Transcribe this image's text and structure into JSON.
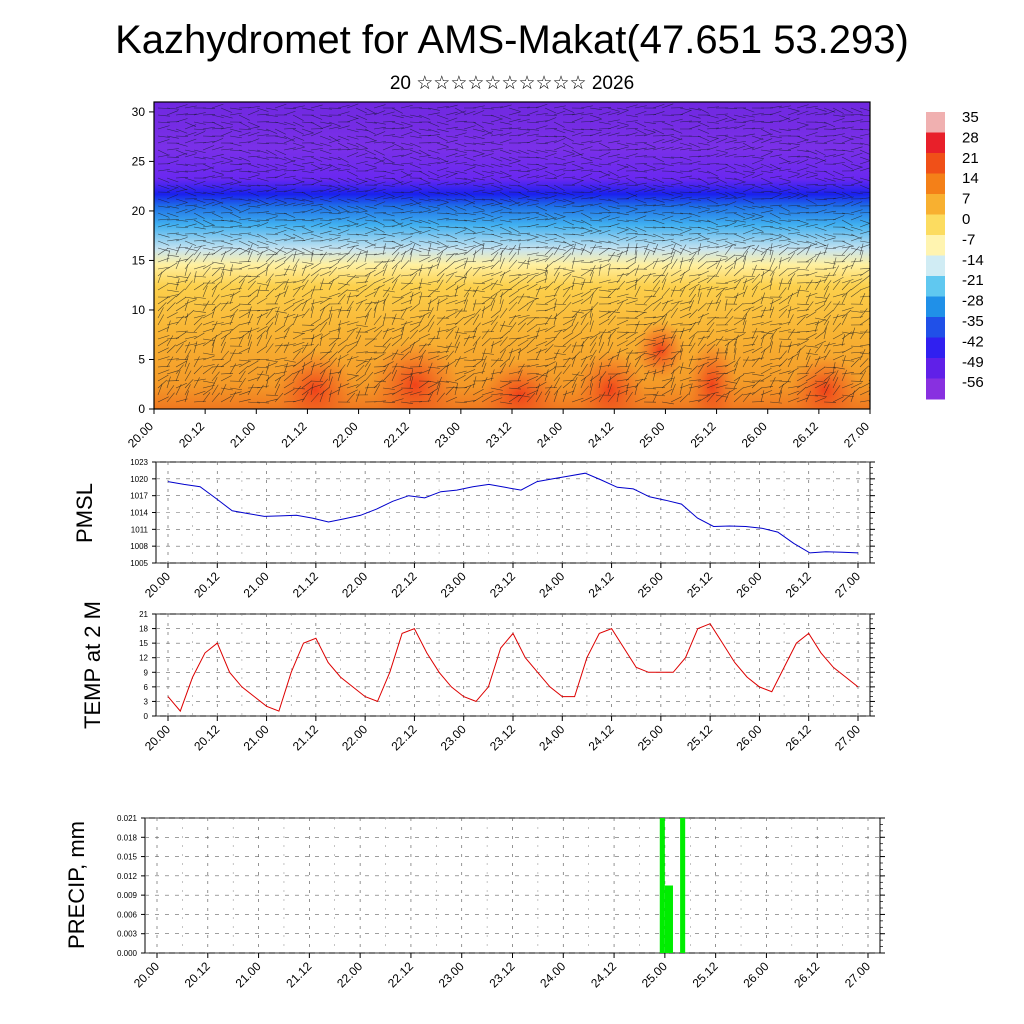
{
  "title": "Kazhydromet for AMS-Makat(47.651 53.293)",
  "subtitle": "20 ☆☆☆☆☆☆☆☆☆☆ 2026",
  "time_labels": [
    "20.00",
    "20.12",
    "21.00",
    "21.12",
    "22.00",
    "22.12",
    "23.00",
    "23.12",
    "24.00",
    "24.12",
    "25.00",
    "25.12",
    "26.00",
    "26.12",
    "27.00"
  ],
  "chart_data": [
    {
      "type": "heatmap",
      "name": "vertical temperature cross-section with wind",
      "ylim": [
        0,
        31
      ],
      "yticks": [
        "0",
        "5",
        "10",
        "15",
        "20",
        "25",
        "30"
      ],
      "colorbar_labels": [
        "35",
        "28",
        "21",
        "14",
        "7",
        "0",
        "-7",
        "-14",
        "-21",
        "-28",
        "-35",
        "-42",
        "-49",
        "-56"
      ],
      "colorbar_colors": [
        "#f0b0b0",
        "#e8202a",
        "#f05018",
        "#f48018",
        "#f8b030",
        "#fcdc60",
        "#fff4b0",
        "#d0ecf4",
        "#60c8f0",
        "#2090e8",
        "#2050e8",
        "#3020f0",
        "#6020e8",
        "#8830e0"
      ]
    },
    {
      "type": "line",
      "ylabel": "PMSL",
      "ylim": [
        1005,
        1023
      ],
      "yticks": [
        "1005",
        "1008",
        "1011",
        "1014",
        "1017",
        "1020",
        "1023"
      ],
      "color": "#0000cc",
      "values": [
        1019.5,
        1019.0,
        1018.6,
        1016.5,
        1014.3,
        1013.8,
        1013.3,
        1013.4,
        1013.5,
        1013.0,
        1012.3,
        1012.9,
        1013.5,
        1014.6,
        1016.0,
        1017.0,
        1016.6,
        1017.7,
        1018.0,
        1018.6,
        1019.0,
        1018.5,
        1018.0,
        1019.5,
        1020.0,
        1020.5,
        1021.0,
        1019.8,
        1018.5,
        1018.2,
        1016.8,
        1016.2,
        1015.5,
        1013.0,
        1011.5,
        1011.6,
        1011.5,
        1011.2,
        1010.5,
        1008.5,
        1006.8,
        1007.0,
        1006.9,
        1006.8
      ]
    },
    {
      "type": "line",
      "ylabel": "TEMP at 2 M",
      "ylim": [
        0,
        21
      ],
      "yticks": [
        "0",
        "3",
        "6",
        "9",
        "12",
        "15",
        "18",
        "21"
      ],
      "color": "#dd0000",
      "values": [
        4,
        1,
        8,
        13,
        15,
        9,
        6,
        4,
        2,
        1,
        9,
        15,
        16,
        11,
        8,
        6,
        4,
        3,
        9,
        17,
        18,
        13,
        9,
        6,
        4,
        3,
        6,
        14,
        17,
        12,
        9,
        6,
        4,
        4,
        12,
        17,
        18,
        14,
        10,
        9,
        9,
        9,
        12,
        18,
        19,
        15,
        11,
        8,
        6,
        5,
        10,
        15,
        17,
        13,
        10,
        8,
        6
      ]
    },
    {
      "type": "bar",
      "ylabel": "PRECIP, mm",
      "ylim": [
        0,
        0.021
      ],
      "yticks": [
        "0.000",
        "0.003",
        "0.006",
        "0.009",
        "0.012",
        "0.015",
        "0.018",
        "0.021"
      ],
      "color": "#00ee00",
      "bars": [
        {
          "start": 24.95,
          "end": 25.0,
          "value": 0.021
        },
        {
          "start": 25.0,
          "end": 25.08,
          "value": 0.0105
        },
        {
          "start": 25.15,
          "end": 25.2,
          "value": 0.021
        }
      ]
    }
  ]
}
